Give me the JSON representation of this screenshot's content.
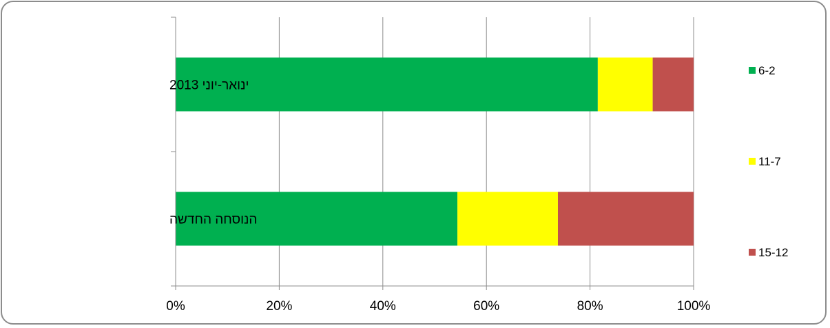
{
  "chart_data": {
    "type": "bar",
    "orientation": "horizontal",
    "stacked": "percent",
    "categories": [
      "ינואר-יוני 2013",
      "הנוסחה החדשה"
    ],
    "series": [
      {
        "name": "6-2",
        "color": "#00b050",
        "values": [
          81.5,
          54.4
        ]
      },
      {
        "name": "11-7",
        "color": "#ffff00",
        "values": [
          10.6,
          19.4
        ]
      },
      {
        "name": "15-12",
        "color": "#c0504d",
        "values": [
          7.9,
          26.2
        ]
      }
    ],
    "xlim": [
      0,
      100
    ],
    "xticks": [
      "0%",
      "20%",
      "40%",
      "60%",
      "80%",
      "100%"
    ],
    "grid": true,
    "legend_position": "right",
    "title": "",
    "xlabel": "",
    "ylabel": ""
  }
}
